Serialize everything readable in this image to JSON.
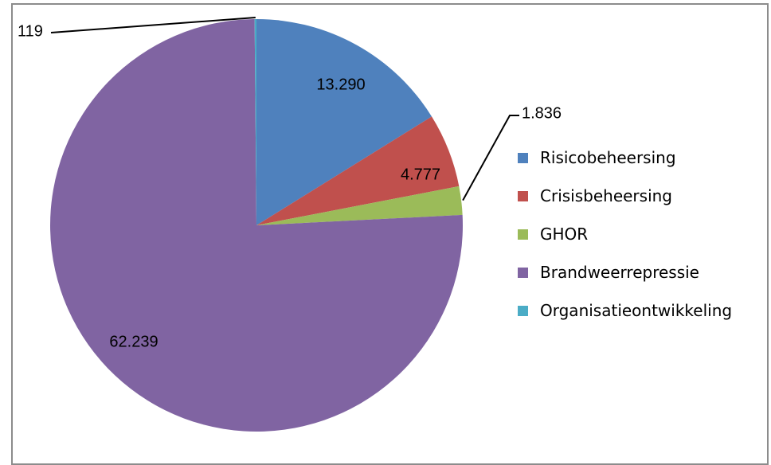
{
  "chart_data": {
    "type": "pie",
    "title": "",
    "slices": [
      {
        "label": "Risicobeheersing",
        "value": 13290,
        "display": "13.290",
        "color": "#4f81bd"
      },
      {
        "label": "Crisisbeheersing",
        "value": 4777,
        "display": "4.777",
        "color": "#c0504d"
      },
      {
        "label": "GHOR",
        "value": 1836,
        "display": "1.836",
        "color": "#9bbb59"
      },
      {
        "label": "Brandweerrepressie",
        "value": 62239,
        "display": "62.239",
        "color": "#8064a2"
      },
      {
        "label": "Organisatieontwikkeling",
        "value": 119,
        "display": "119",
        "color": "#4bacc6"
      }
    ],
    "start": "12 o'clock",
    "direction": "clockwise",
    "legend": "right"
  }
}
